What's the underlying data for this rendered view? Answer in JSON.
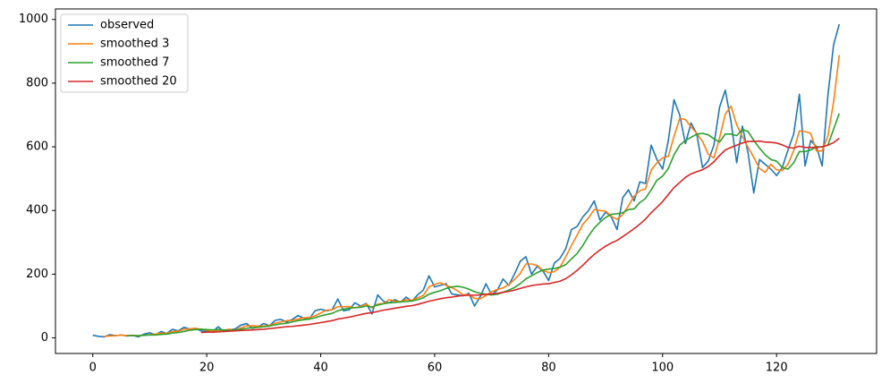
{
  "chart_data": {
    "type": "line",
    "x": [
      0,
      1,
      2,
      3,
      4,
      5,
      6,
      7,
      8,
      9,
      10,
      11,
      12,
      13,
      14,
      15,
      16,
      17,
      18,
      19,
      20,
      21,
      22,
      23,
      24,
      25,
      26,
      27,
      28,
      29,
      30,
      31,
      32,
      33,
      34,
      35,
      36,
      37,
      38,
      39,
      40,
      41,
      42,
      43,
      44,
      45,
      46,
      47,
      48,
      49,
      50,
      51,
      52,
      53,
      54,
      55,
      56,
      57,
      58,
      59,
      60,
      61,
      62,
      63,
      64,
      65,
      66,
      67,
      68,
      69,
      70,
      71,
      72,
      73,
      74,
      75,
      76,
      77,
      78,
      79,
      80,
      81,
      82,
      83,
      84,
      85,
      86,
      87,
      88,
      89,
      90,
      91,
      92,
      93,
      94,
      95,
      96,
      97,
      98,
      99,
      100,
      101,
      102,
      103,
      104,
      105,
      106,
      107,
      108,
      109,
      110,
      111,
      112,
      113,
      114,
      115,
      116,
      117,
      118,
      119,
      120,
      121,
      122,
      123,
      124,
      125,
      126,
      127,
      128,
      129,
      130,
      131
    ],
    "series": [
      {
        "name": "observed",
        "color": "#1f77b4",
        "values": [
          8,
          5,
          3,
          10,
          7,
          9,
          6,
          8,
          3,
          12,
          16,
          9,
          20,
          14,
          27,
          22,
          33,
          28,
          30,
          22,
          20,
          18,
          35,
          20,
          25,
          28,
          40,
          45,
          30,
          35,
          45,
          38,
          55,
          58,
          50,
          58,
          70,
          62,
          60,
          85,
          90,
          85,
          88,
          122,
          85,
          88,
          110,
          100,
          108,
          75,
          135,
          115,
          110,
          120,
          112,
          128,
          115,
          135,
          150,
          195,
          160,
          165,
          170,
          138,
          135,
          132,
          140,
          100,
          130,
          170,
          135,
          150,
          185,
          165,
          200,
          240,
          255,
          200,
          225,
          210,
          180,
          235,
          250,
          280,
          340,
          350,
          380,
          400,
          430,
          370,
          395,
          380,
          340,
          440,
          465,
          430,
          490,
          485,
          605,
          560,
          530,
          620,
          748,
          700,
          610,
          675,
          640,
          535,
          555,
          605,
          725,
          778,
          680,
          550,
          665,
          580,
          455,
          560,
          545,
          530,
          510,
          535,
          590,
          640,
          765,
          540,
          620,
          600,
          540,
          760,
          920,
          985
        ]
      },
      {
        "name": "smoothed 3",
        "color": "#ff7f0e",
        "values": [
          null,
          null,
          5,
          6,
          7,
          9,
          7,
          8,
          6,
          8,
          10,
          12,
          15,
          14,
          20,
          21,
          27,
          28,
          30,
          27,
          24,
          20,
          24,
          24,
          27,
          24,
          31,
          38,
          38,
          37,
          37,
          39,
          46,
          50,
          54,
          55,
          59,
          63,
          64,
          69,
          78,
          87,
          88,
          98,
          98,
          98,
          94,
          99,
          106,
          94,
          106,
          108,
          120,
          115,
          114,
          120,
          118,
          126,
          133,
          160,
          168,
          173,
          165,
          158,
          148,
          135,
          136,
          124,
          123,
          133,
          145,
          152,
          157,
          167,
          183,
          202,
          232,
          232,
          227,
          212,
          205,
          208,
          222,
          255,
          290,
          323,
          357,
          377,
          403,
          400,
          398,
          382,
          372,
          387,
          415,
          445,
          462,
          468,
          527,
          550,
          565,
          570,
          633,
          689,
          686,
          662,
          642,
          617,
          577,
          565,
          628,
          703,
          728,
          669,
          632,
          598,
          567,
          532,
          520,
          545,
          528,
          525,
          545,
          588,
          650,
          648,
          642,
          587,
          587,
          633,
          740,
          888
        ]
      },
      {
        "name": "smoothed 7",
        "color": "#2ca02c",
        "values": [
          null,
          null,
          null,
          null,
          null,
          null,
          7,
          7,
          7,
          8,
          9,
          9,
          11,
          12,
          15,
          17,
          20,
          24,
          26,
          27,
          26,
          25,
          26,
          25,
          24,
          24,
          27,
          30,
          32,
          33,
          35,
          37,
          41,
          44,
          46,
          50,
          54,
          57,
          59,
          63,
          69,
          73,
          77,
          85,
          90,
          93,
          95,
          96,
          100,
          97,
          103,
          107,
          110,
          111,
          113,
          114,
          116,
          120,
          126,
          137,
          143,
          148,
          155,
          160,
          162,
          159,
          153,
          145,
          140,
          137,
          135,
          137,
          143,
          150,
          158,
          170,
          185,
          195,
          205,
          213,
          216,
          218,
          222,
          230,
          248,
          265,
          290,
          320,
          345,
          363,
          378,
          388,
          390,
          393,
          403,
          405,
          425,
          438,
          465,
          495,
          508,
          532,
          575,
          605,
          620,
          630,
          640,
          642,
          638,
          625,
          615,
          640,
          640,
          635,
          655,
          648,
          620,
          596,
          575,
          560,
          555,
          535,
          530,
          550,
          585,
          585,
          590,
          600,
          600,
          605,
          655,
          705
        ]
      },
      {
        "name": "smoothed 20",
        "color": "#d62728",
        "values": [
          null,
          null,
          null,
          null,
          null,
          null,
          null,
          null,
          null,
          null,
          null,
          null,
          null,
          null,
          null,
          null,
          null,
          null,
          null,
          17,
          18,
          18,
          19,
          20,
          21,
          22,
          23,
          24,
          25,
          26,
          27,
          29,
          31,
          33,
          35,
          36,
          38,
          40,
          42,
          45,
          48,
          51,
          54,
          59,
          62,
          65,
          69,
          73,
          77,
          79,
          83,
          87,
          90,
          93,
          96,
          99,
          101,
          105,
          110,
          115,
          119,
          123,
          126,
          128,
          131,
          133,
          134,
          134,
          135,
          137,
          138,
          140,
          143,
          146,
          150,
          155,
          160,
          164,
          167,
          169,
          170,
          174,
          178,
          186,
          198,
          212,
          228,
          246,
          262,
          276,
          288,
          298,
          306,
          318,
          330,
          343,
          357,
          373,
          393,
          410,
          428,
          450,
          472,
          488,
          504,
          515,
          522,
          528,
          538,
          553,
          573,
          590,
          598,
          605,
          612,
          617,
          617,
          618,
          615,
          614,
          612,
          606,
          598,
          596,
          602,
          598,
          598,
          598,
          600,
          605,
          613,
          627
        ]
      }
    ],
    "xlim": [
      -6.55,
      137.55
    ],
    "xticks": [
      0,
      20,
      40,
      60,
      80,
      100,
      120
    ],
    "ylim": [
      -49,
      1033
    ],
    "yticks": [
      0,
      200,
      400,
      600,
      800,
      1000
    ],
    "grid": false,
    "legend": "upper left"
  }
}
